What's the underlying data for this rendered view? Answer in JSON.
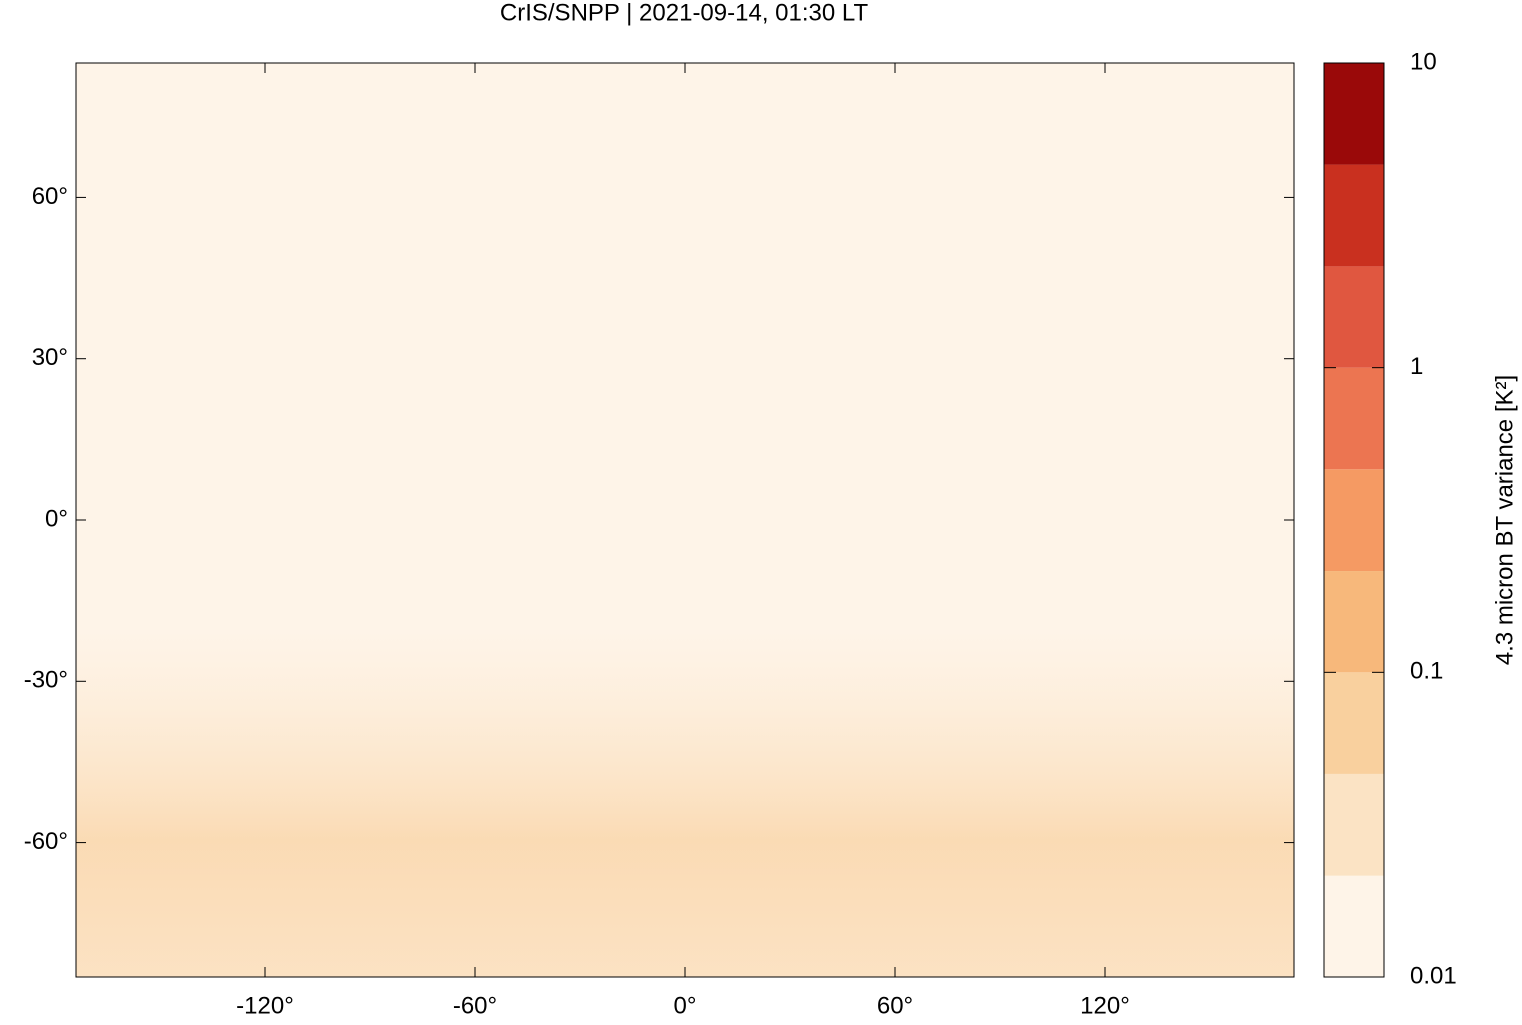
{
  "chart_data": {
    "type": "map",
    "title": "CrIS/SNPP | 2021-09-14, 01:30 LT",
    "xlim": [
      -174,
      174
    ],
    "ylim": [
      -85,
      85
    ],
    "xticks": [
      {
        "value": -120,
        "label": "-120°"
      },
      {
        "value": -60,
        "label": "-60°"
      },
      {
        "value": 0,
        "label": "0°"
      },
      {
        "value": 60,
        "label": "60°"
      },
      {
        "value": 120,
        "label": "120°"
      }
    ],
    "yticks": [
      {
        "value": -60,
        "label": "-60°"
      },
      {
        "value": -30,
        "label": "-30°"
      },
      {
        "value": 0,
        "label": "0°"
      },
      {
        "value": 30,
        "label": "30°"
      },
      {
        "value": 60,
        "label": "60°"
      }
    ],
    "colorbar": {
      "label": "4.3 micron BT variance [K²]",
      "log": true,
      "lim": [
        0.01,
        10
      ],
      "levels": [
        0.01,
        0.0215,
        0.0464,
        0.1,
        0.215,
        0.464,
        1,
        2.15,
        4.64,
        10
      ],
      "colors": [
        "#fef4e8",
        "#fbe3c4",
        "#f9d09e",
        "#f7b87b",
        "#f59a63",
        "#ec7551",
        "#e05740",
        "#c9301f",
        "#9a0909"
      ],
      "ticks": [
        0.01,
        0.1,
        1,
        10
      ]
    }
  }
}
